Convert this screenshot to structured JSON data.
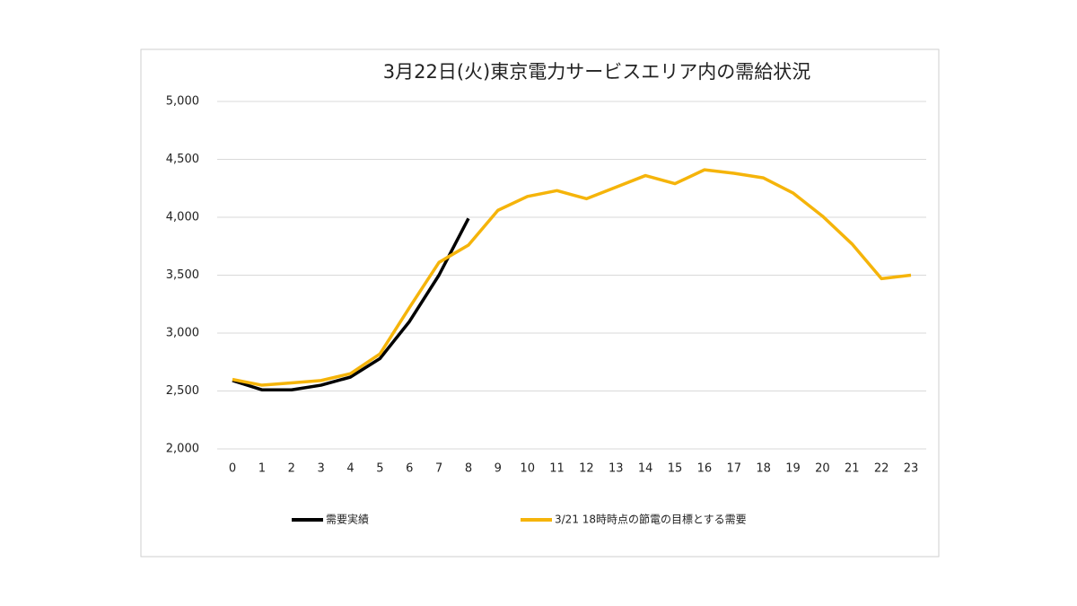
{
  "chart_data": {
    "type": "line",
    "title": "3月22日(火)東京電力サービスエリア内の需給状況",
    "categories": [
      "0",
      "1",
      "2",
      "3",
      "4",
      "5",
      "6",
      "7",
      "8",
      "9",
      "10",
      "11",
      "12",
      "13",
      "14",
      "15",
      "16",
      "17",
      "18",
      "19",
      "20",
      "21",
      "22",
      "23"
    ],
    "series": [
      {
        "name": "需要実績",
        "color": "#000000",
        "values": [
          2590,
          2510,
          2510,
          2550,
          2620,
          2780,
          3100,
          3500,
          3990,
          null,
          null,
          null,
          null,
          null,
          null,
          null,
          null,
          null,
          null,
          null,
          null,
          null,
          null,
          null
        ]
      },
      {
        "name": "3/21 18時時点の節電の目標とする需要",
        "color": "#f5b40a",
        "values": [
          2600,
          2550,
          2570,
          2590,
          2650,
          2820,
          3220,
          3610,
          3760,
          4060,
          4180,
          4230,
          4160,
          4260,
          4360,
          4290,
          4410,
          4380,
          4340,
          4210,
          4010,
          3770,
          3470,
          3500
        ]
      }
    ],
    "ylim": [
      2000,
      5000
    ],
    "yticks": [
      {
        "value": 2000,
        "label": "2,000"
      },
      {
        "value": 2500,
        "label": "2,500"
      },
      {
        "value": 3000,
        "label": "3,000"
      },
      {
        "value": 3500,
        "label": "3,500"
      },
      {
        "value": 4000,
        "label": "4,000"
      },
      {
        "value": 4500,
        "label": "4,500"
      },
      {
        "value": 5000,
        "label": "5,000"
      }
    ],
    "grid": true,
    "legend": "bottom"
  }
}
